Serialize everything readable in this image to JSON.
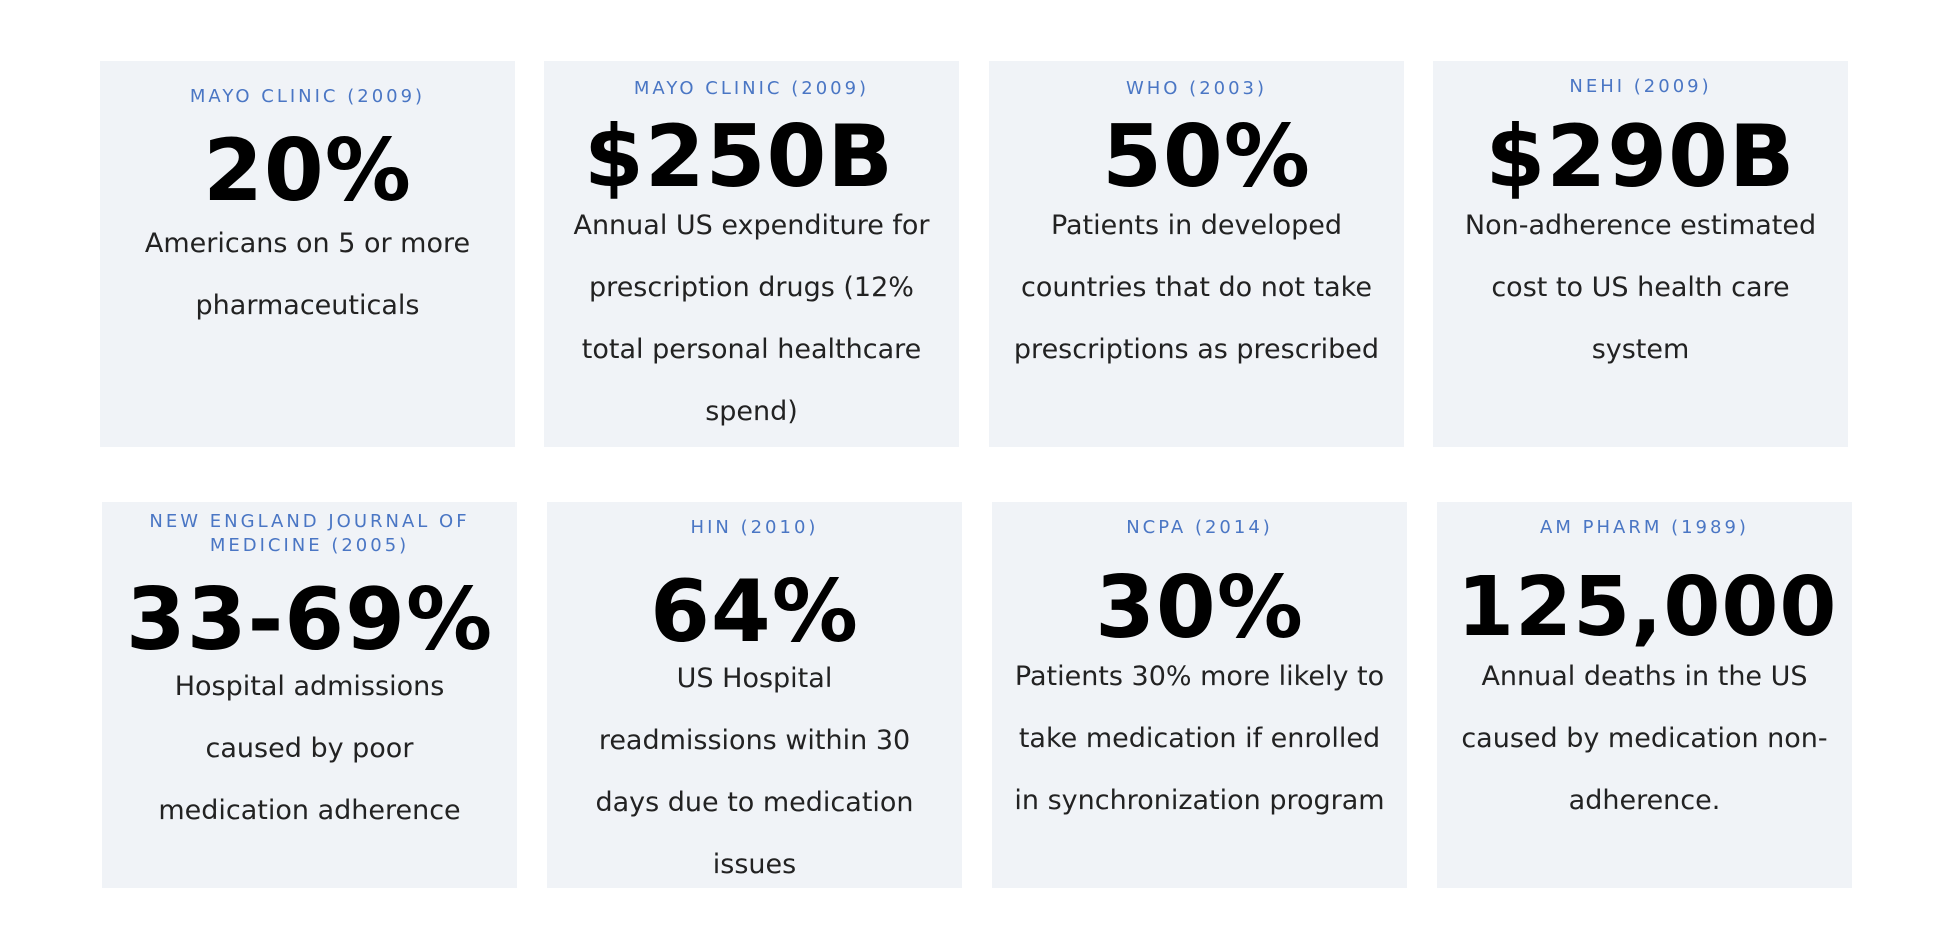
{
  "cards": [
    {
      "source": "MAYO CLINIC (2009)",
      "value": "20%",
      "description": "Americans on 5 or more pharmaceuticals"
    },
    {
      "source": "MAYO CLINIC (2009)",
      "value": "$250B",
      "description": "Annual US expenditure for prescription drugs (12% total personal healthcare spend)"
    },
    {
      "source": "WHO (2003)",
      "value": "50%",
      "description": "Patients in developed countries that do not take prescriptions as prescribed"
    },
    {
      "source": "NEHI (2009)",
      "value": "$290B",
      "description": "Non-adherence estimated cost to US health care system"
    },
    {
      "source": "NEW ENGLAND JOURNAL OF MEDICINE (2005)",
      "value": "33-69%",
      "description": "Hospital admissions caused by poor medication adherence"
    },
    {
      "source": "HIN (2010)",
      "value": "64%",
      "description": "US Hospital readmissions within 30 days due to medication issues"
    },
    {
      "source": "NCPA (2014)",
      "value": "30%",
      "description": "Patients 30% more likely to take medication if enrolled in synchronization program"
    },
    {
      "source": "AM PHARM (1989)",
      "value": "125,000",
      "description": "Annual deaths in the US caused by medication non-adherence."
    }
  ]
}
